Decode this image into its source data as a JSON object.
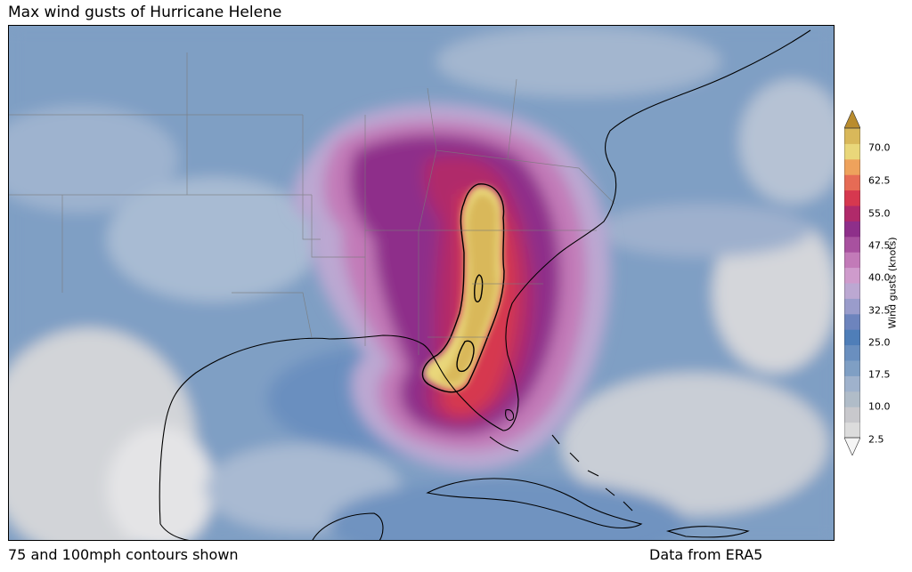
{
  "title": "Max wind gusts of Hurricane Helene",
  "notes": {
    "left": "75 and 100mph contours shown",
    "right": "Data from ERA5"
  },
  "colorbar": {
    "label": "Wind gusts (knots)",
    "ticks": [
      "2.5",
      "10.0",
      "17.5",
      "25.0",
      "32.5",
      "40.0",
      "47.5",
      "55.0",
      "62.5",
      "70.0"
    ],
    "extend": "both",
    "colors": [
      "#f5f5f5",
      "#dcdcdc",
      "#c8c8cc",
      "#b0bcc8",
      "#9fb2cc",
      "#7f9fc4",
      "#6a8fbf",
      "#4f7eb8",
      "#6d84bd",
      "#9a9ccb",
      "#bca8d2",
      "#cf9bcc",
      "#c27ab8",
      "#a8519f",
      "#8e2f8a",
      "#b02a6a",
      "#d6384f",
      "#e66b55",
      "#eea25c",
      "#e9d77a",
      "#d9b85a",
      "#b98c2e"
    ]
  },
  "map": {
    "region": "Southeastern United States, Gulf of Mexico and Caribbean",
    "contour_levels": [
      "75 mph",
      "100 mph"
    ]
  }
}
